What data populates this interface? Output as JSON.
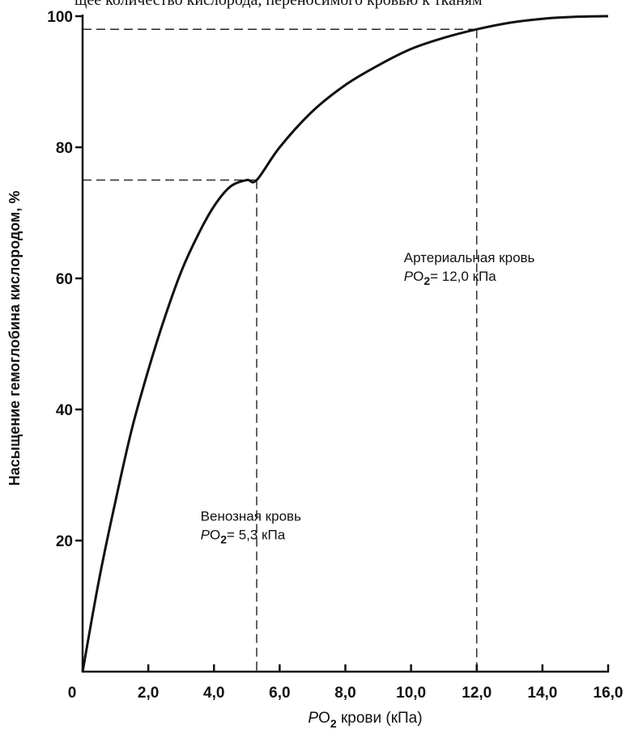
{
  "header_fragment": "щее количество кислорода, переносимого кровью к тканям",
  "chart_data": {
    "type": "line",
    "xlim": [
      0,
      16
    ],
    "ylim": [
      0,
      100
    ],
    "x_ticks": [
      0,
      2,
      4,
      6,
      8,
      10,
      12,
      14,
      16
    ],
    "x_tick_labels": [
      "0",
      "2,0",
      "4,0",
      "6,0",
      "8,0",
      "10,0",
      "12,0",
      "14,0",
      "16,0"
    ],
    "y_ticks": [
      20,
      40,
      60,
      80,
      100
    ],
    "y_tick_labels": [
      "20",
      "40",
      "60",
      "80",
      "100"
    ],
    "xlabel": {
      "p": "P",
      "o": "O",
      "sub": "2",
      "rest": " крови (кПа)"
    },
    "ylabel": "Насыщение гемоглобина кислородом, %",
    "grid": false,
    "series": [
      {
        "x": [
          0,
          0.5,
          1,
          1.5,
          2,
          2.5,
          3,
          3.5,
          4,
          4.5,
          5,
          5.3,
          6,
          7,
          8,
          9,
          10,
          11,
          12,
          13,
          14,
          15,
          16
        ],
        "y": [
          0,
          14,
          26,
          37,
          46,
          54,
          61,
          66.5,
          71,
          74,
          75,
          75,
          80,
          85.5,
          89.5,
          92.5,
          95,
          96.7,
          98,
          99,
          99.6,
          99.9,
          100
        ]
      }
    ],
    "reference_lines": [
      {
        "x": 5.3,
        "y": 75
      },
      {
        "x": 12.0,
        "y": 98
      }
    ],
    "annotations": [
      {
        "line1": "Венозная кровь",
        "p": "P",
        "o": "O",
        "sub": "2",
        "rest": "= 5,3 кПа",
        "at_x": 5.3,
        "at_y": 23
      },
      {
        "line1": "Артериальная кровь",
        "p": "P",
        "o": "O",
        "sub": "2",
        "rest": "= 12,0 кПа",
        "at_x": 12.0,
        "at_y": 62.5
      }
    ]
  }
}
